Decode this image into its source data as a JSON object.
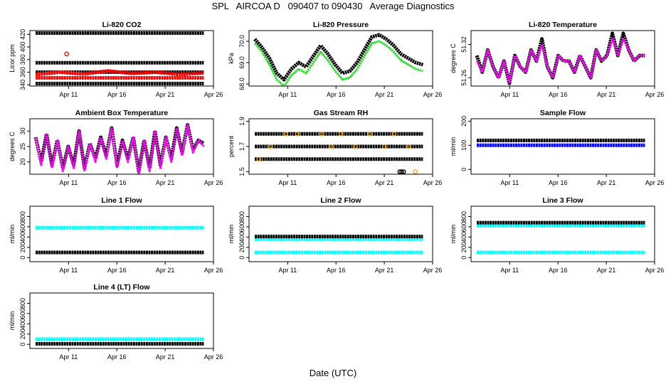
{
  "figure": {
    "title": "SPL   AIRCOA D   090407 to 090430   Average Diagnostics",
    "xlabel": "Date (UTC)"
  },
  "colors": {
    "black": "#000000",
    "red": "#ff0000",
    "green": "#22dd22",
    "magenta": "#ff00ff",
    "orange": "#ffaa00",
    "blue": "#0000ff",
    "cyan": "#00ffff"
  },
  "chart_data": [
    {
      "type": "scatter",
      "title": "Li-820 CO2",
      "ylabel": "Licor ppm",
      "xticks": [
        "Apr 11",
        "Apr 16",
        "Apr 21",
        "Apr 26"
      ],
      "yticks": [
        "340",
        "360",
        "380",
        "400",
        "420"
      ],
      "ylim": [
        338,
        426
      ],
      "xlim": [
        7,
        26
      ],
      "series": [
        {
          "name": "ref-high",
          "color": "black",
          "kind": "band",
          "values": [
            422,
            422
          ]
        },
        {
          "name": "ref-mid",
          "color": "black",
          "kind": "band",
          "values": [
            375,
            375
          ]
        },
        {
          "name": "ref-mid2",
          "color": "black",
          "kind": "band",
          "values": [
            360,
            360
          ]
        },
        {
          "name": "ref-low",
          "color": "black",
          "kind": "band",
          "values": [
            342,
            342
          ]
        },
        {
          "name": "sample",
          "color": "red",
          "kind": "band",
          "values": [
            356,
            360,
            357,
            362,
            358,
            360,
            356,
            359
          ]
        },
        {
          "name": "sample-low",
          "color": "red",
          "kind": "band",
          "values": [
            351,
            351
          ]
        },
        {
          "name": "outlier",
          "color": "red",
          "kind": "points",
          "points": [
            [
              10.8,
              389
            ]
          ]
        }
      ]
    },
    {
      "type": "line",
      "title": "Li-820 Pressure",
      "ylabel": "kPa",
      "xticks": [
        "Apr 11",
        "Apr 16",
        "Apr 21",
        "Apr 26"
      ],
      "yticks": [
        "68.0",
        "69.0",
        "70.0"
      ],
      "ylim": [
        67.9,
        70.5
      ],
      "xlim": [
        7,
        26
      ],
      "series": [
        {
          "name": "pressure",
          "color": "black",
          "values": [
            70.1,
            69.7,
            69.2,
            68.5,
            68.2,
            68.7,
            69.0,
            68.8,
            69.3,
            69.8,
            69.4,
            68.9,
            68.5,
            68.6,
            69.0,
            69.6,
            70.2,
            70.3,
            70.1,
            69.8,
            69.4,
            69.2,
            69.0,
            68.9
          ]
        },
        {
          "name": "pressure-2",
          "color": "green",
          "values": [
            69.9,
            69.5,
            68.9,
            68.2,
            67.9,
            68.4,
            68.7,
            68.5,
            69.0,
            69.5,
            69.1,
            68.6,
            68.2,
            68.3,
            68.7,
            69.3,
            69.9,
            70.0,
            69.8,
            69.5,
            69.1,
            68.9,
            68.7,
            68.6
          ]
        }
      ]
    },
    {
      "type": "line",
      "title": "Li-820 Temperature",
      "ylabel": "degrees C",
      "xticks": [
        "Apr 11",
        "Apr 16",
        "Apr 21",
        "Apr 26"
      ],
      "yticks": [
        "51.26",
        "51.32"
      ],
      "ylim": [
        51.245,
        51.345
      ],
      "xlim": [
        7,
        26
      ],
      "series": [
        {
          "name": "temperature",
          "color": "black",
          "values": [
            51.3,
            51.27,
            51.31,
            51.28,
            51.26,
            51.29,
            51.25,
            51.3,
            51.28,
            51.27,
            51.31,
            51.29,
            51.33,
            51.28,
            51.26,
            51.3,
            51.29,
            51.29,
            51.27,
            51.3,
            51.28,
            51.26,
            51.31,
            51.29,
            51.3,
            51.34,
            51.3,
            51.34,
            51.31,
            51.29,
            51.3,
            51.3
          ]
        },
        {
          "name": "temperature-2",
          "color": "magenta",
          "values": [
            51.29,
            51.27,
            51.31,
            51.28,
            51.26,
            51.29,
            51.25,
            51.3,
            51.28,
            51.27,
            51.31,
            51.29,
            51.32,
            51.28,
            51.26,
            51.3,
            51.29,
            51.29,
            51.27,
            51.3,
            51.28,
            51.26,
            51.31,
            51.29,
            51.3,
            51.33,
            51.3,
            51.33,
            51.31,
            51.29,
            51.3,
            51.3
          ]
        }
      ]
    },
    {
      "type": "line",
      "title": "Ambient Box Temperature",
      "ylabel": "degrees C",
      "xticks": [
        "Apr 11",
        "Apr 16",
        "Apr 21",
        "Apr 26"
      ],
      "yticks": [
        "20",
        "25",
        "30"
      ],
      "ylim": [
        16,
        34
      ],
      "xlim": [
        7,
        26
      ],
      "series": [
        {
          "name": "box-temp",
          "color": "black",
          "values": [
            28,
            20,
            29,
            19,
            27,
            18,
            25,
            19,
            30,
            18,
            26,
            21,
            28,
            22,
            31,
            19,
            27,
            21,
            28,
            17,
            27,
            18,
            30,
            19,
            28,
            21,
            31,
            23,
            32,
            24,
            27,
            26
          ]
        },
        {
          "name": "box-temp-2",
          "color": "magenta",
          "values": [
            28,
            19,
            29,
            18,
            27,
            17,
            25,
            18,
            30,
            17,
            26,
            20,
            28,
            21,
            31,
            18,
            27,
            20,
            28,
            16,
            27,
            17,
            30,
            18,
            28,
            20,
            31,
            22,
            32,
            23,
            27,
            25
          ]
        }
      ]
    },
    {
      "type": "scatter",
      "title": "Gas Stream RH",
      "ylabel": "percent",
      "xticks": [
        "Apr 11",
        "Apr 16",
        "Apr 21",
        "Apr 26"
      ],
      "yticks": [
        "1.5",
        "1.7",
        "1.9"
      ],
      "ylim": [
        1.48,
        1.92
      ],
      "xlim": [
        7,
        26
      ],
      "series": [
        {
          "name": "rh-1.8",
          "color": "black",
          "kind": "band",
          "values": [
            1.8,
            1.8
          ]
        },
        {
          "name": "rh-1.7",
          "color": "black",
          "kind": "band",
          "values": [
            1.7,
            1.7
          ]
        },
        {
          "name": "rh-1.6",
          "color": "black",
          "kind": "band",
          "values": [
            1.6,
            1.6
          ]
        },
        {
          "name": "rh-1.5",
          "color": "black",
          "kind": "points",
          "points": [
            [
              22.6,
              1.5
            ],
            [
              22.8,
              1.5
            ],
            [
              23.0,
              1.5
            ]
          ]
        },
        {
          "name": "rh-orange",
          "color": "orange",
          "kind": "points",
          "points": [
            [
              8.0,
              1.6
            ],
            [
              9.2,
              1.7
            ],
            [
              10.8,
              1.8
            ],
            [
              12.0,
              1.8
            ],
            [
              14.5,
              1.8
            ],
            [
              15.5,
              1.7
            ],
            [
              16.5,
              1.8
            ],
            [
              18.0,
              1.7
            ],
            [
              19.5,
              1.8
            ],
            [
              21.0,
              1.7
            ],
            [
              22.0,
              1.8
            ],
            [
              23.5,
              1.7
            ],
            [
              24.2,
              1.5
            ]
          ]
        }
      ]
    },
    {
      "type": "scatter",
      "title": "Sample Flow",
      "ylabel": "ml/min",
      "xticks": [
        "Apr 11",
        "Apr 16",
        "Apr 21",
        "Apr 26"
      ],
      "yticks": [
        "0",
        "100",
        "200"
      ],
      "ylim": [
        -20,
        210
      ],
      "xlim": [
        7,
        26
      ],
      "series": [
        {
          "name": "sample-flow",
          "color": "black",
          "kind": "band",
          "values": [
            120,
            120
          ]
        },
        {
          "name": "sample-flow-2",
          "color": "blue",
          "kind": "band",
          "values": [
            100,
            100
          ]
        }
      ]
    },
    {
      "type": "scatter",
      "title": "Line 1 Flow",
      "ylabel": "ml/min",
      "xticks": [
        "Apr 11",
        "Apr 16",
        "Apr 21",
        "Apr 26"
      ],
      "yticks": [
        "0",
        "200",
        "400",
        "600",
        "800"
      ],
      "ylim": [
        -80,
        1000
      ],
      "xlim": [
        7,
        26
      ],
      "series": [
        {
          "name": "line1-cyan",
          "color": "cyan",
          "kind": "band",
          "values": [
            580,
            580
          ]
        },
        {
          "name": "line1-black",
          "color": "black",
          "kind": "band",
          "values": [
            100,
            100
          ]
        }
      ]
    },
    {
      "type": "scatter",
      "title": "Line 2 Flow",
      "ylabel": "ml/min",
      "xticks": [
        "Apr 11",
        "Apr 16",
        "Apr 21",
        "Apr 26"
      ],
      "yticks": [
        "0",
        "200",
        "400",
        "600",
        "800"
      ],
      "ylim": [
        -80,
        1000
      ],
      "xlim": [
        7,
        26
      ],
      "series": [
        {
          "name": "line2-cyan-a",
          "color": "cyan",
          "kind": "band",
          "values": [
            360,
            360
          ]
        },
        {
          "name": "line2-black",
          "color": "black",
          "kind": "band",
          "values": [
            410,
            410
          ]
        },
        {
          "name": "line2-cyan-b",
          "color": "cyan",
          "kind": "band",
          "values": [
            100,
            100
          ]
        }
      ]
    },
    {
      "type": "scatter",
      "title": "Line 3 Flow",
      "ylabel": "ml/min",
      "xticks": [
        "Apr 11",
        "Apr 16",
        "Apr 21",
        "Apr 26"
      ],
      "yticks": [
        "0",
        "200",
        "400",
        "600",
        "800"
      ],
      "ylim": [
        -80,
        1000
      ],
      "xlim": [
        7,
        26
      ],
      "series": [
        {
          "name": "line3-cyan-a",
          "color": "cyan",
          "kind": "band",
          "values": [
            620,
            620
          ]
        },
        {
          "name": "line3-black",
          "color": "black",
          "kind": "band",
          "values": [
            680,
            680
          ]
        },
        {
          "name": "line3-cyan-b",
          "color": "cyan",
          "kind": "band",
          "values": [
            100,
            100
          ]
        }
      ]
    },
    {
      "type": "scatter",
      "title": "Line 4 (LT) Flow",
      "ylabel": "ml/min",
      "xticks": [
        "Apr 11",
        "Apr 16",
        "Apr 21",
        "Apr 26"
      ],
      "yticks": [
        "0",
        "200",
        "400",
        "600",
        "800"
      ],
      "ylim": [
        -80,
        1000
      ],
      "xlim": [
        7,
        26
      ],
      "series": [
        {
          "name": "line4-cyan",
          "color": "cyan",
          "kind": "band",
          "values": [
            100,
            100
          ]
        },
        {
          "name": "line4-black",
          "color": "black",
          "kind": "band",
          "values": [
            10,
            10
          ]
        }
      ]
    }
  ]
}
